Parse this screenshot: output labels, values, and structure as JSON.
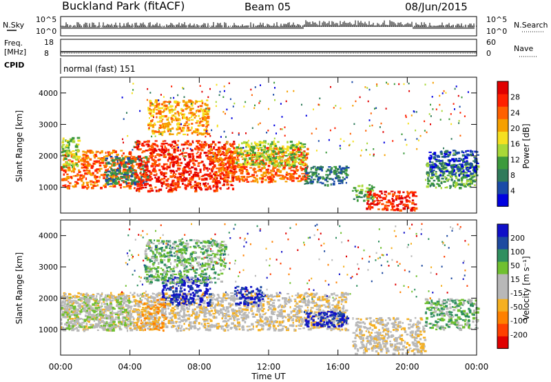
{
  "header": {
    "station": "Buckland Park (fitACF)",
    "beam": "Beam 05",
    "date": "08/Jun/2015"
  },
  "status_panels": {
    "nsky_label": "N.Sky",
    "nsky_ticks": [
      "10^5",
      "10^0"
    ],
    "nsearch_label": "N.Search",
    "nsearch_ticks": [
      "10^5",
      "10^0"
    ],
    "freq_label_1": "Freq.",
    "freq_label_2": "[MHz]",
    "freq_ticks": [
      "18",
      "8"
    ],
    "nave_label": "Nave",
    "nave_ticks": [
      "60",
      "0"
    ],
    "cpid_label": "CPID",
    "cpid_text": "normal (fast) 151"
  },
  "colors": {
    "power_scale": [
      "#0000e0",
      "#1a4aa8",
      "#2f7a5a",
      "#3c9a3c",
      "#a8d838",
      "#f5e020",
      "#f6a000",
      "#ff6000",
      "#ff2000",
      "#e00000"
    ],
    "velocity_scale": [
      "#e00000",
      "#ff4000",
      "#ff8000",
      "#f6b020",
      "#b8b8b8",
      "#b8b8b8",
      "#70c030",
      "#2f8f5f",
      "#1e4aa0",
      "#1010c8"
    ]
  },
  "chart_data": [
    {
      "type": "heatmap",
      "name": "power",
      "ylabel": "Slant Range [km]",
      "y_ticks": [
        "1000",
        "2000",
        "3000",
        "4000"
      ],
      "ylim": [
        180,
        4500
      ],
      "xlim": [
        0,
        24
      ],
      "colorbar_label": "Power [dB]",
      "colorbar_ticks": [
        "4",
        "8",
        "12",
        "16",
        "20",
        "24",
        "28"
      ],
      "regions": [
        {
          "t0": 0.0,
          "t1": 4.2,
          "r0": 1000,
          "r1": 2200,
          "level": 7
        },
        {
          "t0": 0.0,
          "t1": 1.0,
          "r0": 1600,
          "r1": 2600,
          "level": 4
        },
        {
          "t0": 2.5,
          "t1": 5.0,
          "r0": 1100,
          "r1": 2000,
          "level": 2
        },
        {
          "t0": 4.2,
          "t1": 10.0,
          "r0": 900,
          "r1": 2500,
          "level": 8
        },
        {
          "t0": 5.0,
          "t1": 8.5,
          "r0": 2700,
          "r1": 3800,
          "level": 6
        },
        {
          "t0": 8.5,
          "t1": 14.2,
          "r0": 1200,
          "r1": 2300,
          "level": 7
        },
        {
          "t0": 10.0,
          "t1": 14.0,
          "r0": 1700,
          "r1": 2500,
          "level": 4
        },
        {
          "t0": 14.0,
          "t1": 16.6,
          "r0": 1100,
          "r1": 1700,
          "level": 2
        },
        {
          "t0": 16.8,
          "t1": 18.0,
          "r0": 600,
          "r1": 1100,
          "level": 3
        },
        {
          "t0": 17.6,
          "t1": 20.5,
          "r0": 300,
          "r1": 900,
          "level": 8
        },
        {
          "t0": 21.0,
          "t1": 24.0,
          "r0": 1000,
          "r1": 1800,
          "level": 3
        },
        {
          "t0": 21.2,
          "t1": 24.0,
          "r0": 1400,
          "r1": 2200,
          "level": 1
        }
      ]
    },
    {
      "type": "heatmap",
      "name": "velocity",
      "ylabel": "Slant Range [km]",
      "y_ticks": [
        "1000",
        "2000",
        "3000",
        "4000"
      ],
      "ylim": [
        180,
        4500
      ],
      "xlim": [
        0,
        24
      ],
      "colorbar_label": "Velocity [m s⁻¹]",
      "colorbar_ticks": [
        "-200",
        "-100",
        "-50",
        "-15",
        "15",
        "50",
        "100",
        "200"
      ],
      "regions": [
        {
          "t0": 0.0,
          "t1": 16.5,
          "r0": 1000,
          "r1": 2200,
          "level": 4
        },
        {
          "t0": 5.8,
          "t1": 8.6,
          "r0": 1800,
          "r1": 2700,
          "level": 9
        },
        {
          "t0": 10.0,
          "t1": 11.6,
          "r0": 1800,
          "r1": 2400,
          "level": 9
        },
        {
          "t0": 14.0,
          "t1": 16.5,
          "r0": 1100,
          "r1": 1600,
          "level": 9
        },
        {
          "t0": 4.8,
          "t1": 9.5,
          "r0": 2500,
          "r1": 3900,
          "level": 6
        },
        {
          "t0": 16.8,
          "t1": 21.0,
          "r0": 250,
          "r1": 1400,
          "level": 4
        },
        {
          "t0": 21.0,
          "t1": 24.0,
          "r0": 1000,
          "r1": 2000,
          "level": 6
        },
        {
          "t0": 4.3,
          "t1": 6.0,
          "r0": 1000,
          "r1": 2000,
          "level": 3
        },
        {
          "t0": 0.0,
          "t1": 4.0,
          "r0": 1000,
          "r1": 2100,
          "level": 5
        }
      ]
    }
  ],
  "x_axis": {
    "ticks": [
      "00:00",
      "04:00",
      "08:00",
      "12:00",
      "16:00",
      "20:00",
      "00:00"
    ],
    "label": "Time UT"
  }
}
